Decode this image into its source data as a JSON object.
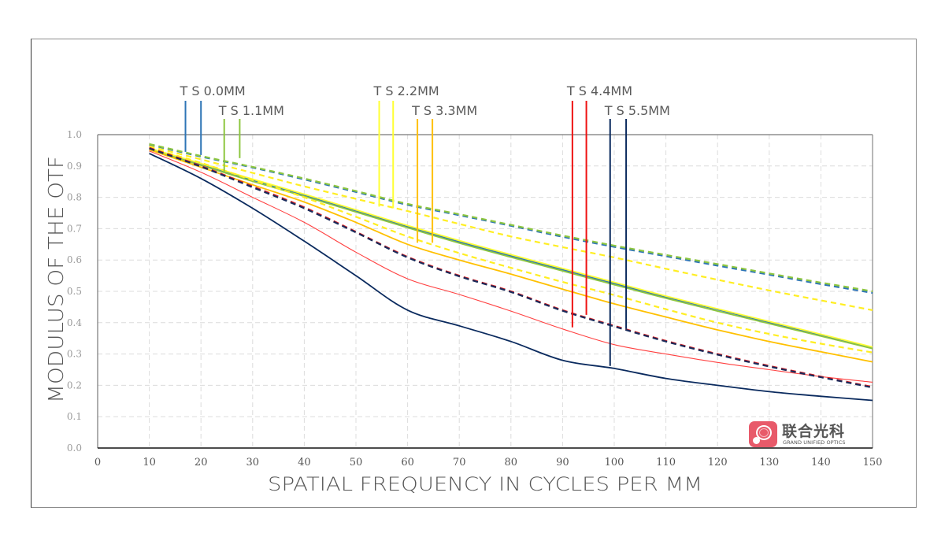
{
  "chart_data": {
    "type": "line",
    "title": "",
    "xlabel": "SPATIAL FREQUENCY IN CYCLES PER MM",
    "ylabel": "MODULUS OF THE OTF",
    "xlim": [
      0,
      150
    ],
    "ylim": [
      0.0,
      1.0
    ],
    "xticks": [
      0,
      10,
      20,
      30,
      40,
      50,
      60,
      70,
      80,
      90,
      100,
      110,
      120,
      130,
      140,
      150
    ],
    "xtick_labels": [
      "0",
      "10",
      "20",
      "30",
      "40",
      "50",
      "60",
      "70",
      "80",
      "90",
      "100",
      "110",
      "120",
      "130",
      "140",
      "150"
    ],
    "yticks": [
      0.0,
      0.1,
      0.2,
      0.3,
      0.4,
      0.5,
      0.6,
      0.7,
      0.8,
      0.9,
      1.0
    ],
    "ytick_labels": [
      "0.0",
      "0.1",
      "0.2",
      "0.3",
      "0.4",
      "0.5",
      "0.6",
      "0.7",
      "0.8",
      "0.9",
      "1.0"
    ],
    "grid": true,
    "x": [
      10,
      20,
      30,
      40,
      50,
      60,
      70,
      80,
      90,
      100,
      110,
      120,
      130,
      140,
      150
    ],
    "series": [
      {
        "name": "TS 0.0MM T",
        "field": "0.0MM",
        "orientation": "T",
        "color": "#2e75b6",
        "dash": false,
        "values": [
          0.955,
          0.905,
          0.855,
          0.807,
          0.757,
          0.707,
          0.658,
          0.613,
          0.569,
          0.525,
          0.482,
          0.442,
          0.401,
          0.36,
          0.32
        ]
      },
      {
        "name": "TS 0.0MM S",
        "field": "0.0MM",
        "orientation": "S",
        "color": "#2e75b6",
        "dash": true,
        "values": [
          0.968,
          0.93,
          0.895,
          0.857,
          0.817,
          0.776,
          0.743,
          0.709,
          0.674,
          0.642,
          0.612,
          0.582,
          0.553,
          0.523,
          0.495
        ]
      },
      {
        "name": "TS 1.1MM T",
        "field": "1.1MM",
        "orientation": "T",
        "color": "#8dc63f",
        "dash": false,
        "values": [
          0.953,
          0.902,
          0.851,
          0.803,
          0.753,
          0.703,
          0.654,
          0.609,
          0.565,
          0.521,
          0.478,
          0.437,
          0.397,
          0.357,
          0.317
        ]
      },
      {
        "name": "TS 1.1MM S",
        "field": "1.1MM",
        "orientation": "S",
        "color": "#8dc63f",
        "dash": true,
        "values": [
          0.97,
          0.932,
          0.897,
          0.86,
          0.82,
          0.779,
          0.746,
          0.712,
          0.678,
          0.646,
          0.616,
          0.587,
          0.557,
          0.528,
          0.5
        ]
      },
      {
        "name": "TS 2.2MM T",
        "field": "2.2MM",
        "orientation": "T",
        "color": "#ffff33",
        "dash": false,
        "values": [
          0.957,
          0.908,
          0.858,
          0.81,
          0.76,
          0.71,
          0.662,
          0.617,
          0.573,
          0.529,
          0.485,
          0.444,
          0.404,
          0.363,
          0.322
        ]
      },
      {
        "name": "TS 2.2MM S",
        "field": "2.2MM",
        "orientation": "S",
        "color": "#ffee22",
        "dash": true,
        "values": [
          0.963,
          0.921,
          0.878,
          0.835,
          0.795,
          0.756,
          0.715,
          0.675,
          0.641,
          0.608,
          0.572,
          0.537,
          0.503,
          0.471,
          0.44
        ]
      },
      {
        "name": "TS 3.3MM T",
        "field": "3.3MM",
        "orientation": "T",
        "color": "#ffc000",
        "dash": false,
        "values": [
          0.952,
          0.896,
          0.84,
          0.785,
          0.72,
          0.65,
          0.6,
          0.555,
          0.507,
          0.46,
          0.418,
          0.377,
          0.34,
          0.307,
          0.275
        ]
      },
      {
        "name": "TS 3.3MM S",
        "field": "3.3MM",
        "orientation": "S",
        "color": "#ffee22",
        "dash": true,
        "values": [
          0.958,
          0.91,
          0.855,
          0.8,
          0.738,
          0.675,
          0.622,
          0.575,
          0.53,
          0.488,
          0.443,
          0.4,
          0.364,
          0.333,
          0.305
        ]
      },
      {
        "name": "TS 4.4MM T",
        "field": "4.4MM",
        "orientation": "T",
        "color": "#ff4040",
        "dash": false,
        "values": [
          0.948,
          0.88,
          0.8,
          0.72,
          0.625,
          0.54,
          0.49,
          0.437,
          0.38,
          0.33,
          0.3,
          0.273,
          0.25,
          0.228,
          0.21
        ]
      },
      {
        "name": "TS 4.4MM S",
        "field": "4.4MM",
        "orientation": "S",
        "color": "#e02020",
        "dash": true,
        "values": [
          0.958,
          0.9,
          0.835,
          0.768,
          0.69,
          0.61,
          0.55,
          0.5,
          0.44,
          0.39,
          0.342,
          0.3,
          0.262,
          0.228,
          0.195
        ]
      },
      {
        "name": "TS 5.5MM T",
        "field": "5.5MM",
        "orientation": "T",
        "color": "#0a2a5e",
        "dash": false,
        "values": [
          0.94,
          0.86,
          0.765,
          0.66,
          0.55,
          0.44,
          0.39,
          0.34,
          0.28,
          0.254,
          0.222,
          0.2,
          0.18,
          0.165,
          0.152
        ]
      },
      {
        "name": "TS 5.5MM S",
        "field": "5.5MM",
        "orientation": "S",
        "color": "#1a2a5a",
        "dash": true,
        "values": [
          0.956,
          0.898,
          0.832,
          0.765,
          0.688,
          0.608,
          0.548,
          0.498,
          0.438,
          0.388,
          0.34,
          0.298,
          0.26,
          0.226,
          0.193
        ]
      }
    ],
    "markers": [
      {
        "label": "T S 0.0MM",
        "color": "#2e75b6",
        "lines_x": [
          17,
          20
        ],
        "lines_end": [
          0.945,
          0.935
        ],
        "row": 0
      },
      {
        "label": "T S 1.1MM",
        "color": "#8dc63f",
        "lines_x": [
          24.5,
          27.5
        ],
        "lines_end": [
          0.88,
          0.925
        ],
        "row": 1
      },
      {
        "label": "T S 2.2MM",
        "color": "#ffff33",
        "lines_x": [
          54.5,
          57.2
        ],
        "lines_end": [
          0.77,
          0.765
        ],
        "row": 0
      },
      {
        "label": "T S 3.3MM",
        "color": "#ffc000",
        "lines_x": [
          61.9,
          64.8
        ],
        "lines_end": [
          0.655,
          0.655
        ],
        "row": 1
      },
      {
        "label": "T S 4.4MM",
        "color": "#ee1111",
        "lines_x": [
          91.9,
          94.6
        ],
        "lines_end": [
          0.385,
          0.425
        ],
        "row": 0
      },
      {
        "label": "T S 5.5MM",
        "color": "#0a2a5e",
        "lines_x": [
          99.2,
          102.3
        ],
        "lines_end": [
          0.262,
          0.38
        ],
        "row": 1
      }
    ]
  },
  "logo": {
    "name_cn": "联合光科",
    "name_en": "GRAND UNIFIED OPTICS",
    "badge_color": "#e85a6a"
  }
}
